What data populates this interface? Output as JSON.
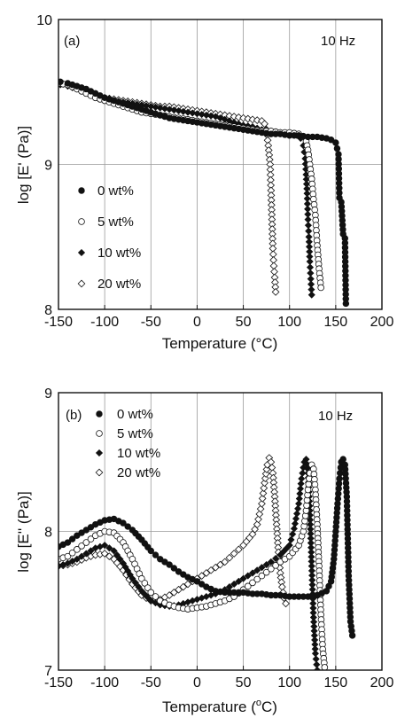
{
  "chart_data": [
    {
      "type": "scatter",
      "panel_label": "(a)",
      "annotation": "10 Hz",
      "xlabel": "Temperature (°C)",
      "ylabel": "log [E' (Pa)]",
      "xlim": [
        -150,
        200
      ],
      "ylim": [
        8,
        10
      ],
      "x_ticks": [
        "-150",
        "-100",
        "-50",
        "0",
        "50",
        "100",
        "150",
        "200"
      ],
      "y_ticks": [
        "8",
        "9",
        "10"
      ],
      "grid": true,
      "legend_position": "left",
      "series": [
        {
          "name": "0 wt%",
          "marker": "filled-circle",
          "x": [
            -148,
            -140,
            -130,
            -120,
            -110,
            -100,
            -90,
            -80,
            -70,
            -60,
            -50,
            -40,
            -30,
            -20,
            -10,
            0,
            10,
            20,
            30,
            40,
            50,
            60,
            70,
            80,
            90,
            100,
            110,
            120,
            130,
            140,
            145,
            150,
            153,
            154,
            156,
            158,
            160,
            161
          ],
          "y": [
            9.57,
            9.56,
            9.54,
            9.52,
            9.49,
            9.46,
            9.44,
            9.42,
            9.4,
            9.38,
            9.36,
            9.34,
            9.32,
            9.31,
            9.3,
            9.29,
            9.28,
            9.27,
            9.26,
            9.25,
            9.24,
            9.23,
            9.22,
            9.21,
            9.21,
            9.2,
            9.2,
            9.19,
            9.19,
            9.18,
            9.17,
            9.15,
            9.07,
            8.77,
            8.74,
            8.52,
            8.49,
            8.04
          ]
        },
        {
          "name": "5 wt%",
          "marker": "open-circle",
          "x": [
            -150,
            -140,
            -130,
            -120,
            -110,
            -100,
            -90,
            -80,
            -70,
            -60,
            -50,
            -40,
            -30,
            -20,
            -10,
            0,
            10,
            20,
            30,
            40,
            50,
            60,
            70,
            80,
            90,
            100,
            110,
            115,
            118,
            120,
            122,
            124,
            126,
            128,
            130,
            132,
            134
          ],
          "y": [
            9.56,
            9.55,
            9.52,
            9.49,
            9.46,
            9.44,
            9.42,
            9.4,
            9.38,
            9.36,
            9.35,
            9.34,
            9.33,
            9.32,
            9.31,
            9.3,
            9.29,
            9.28,
            9.27,
            9.26,
            9.25,
            9.24,
            9.23,
            9.23,
            9.22,
            9.22,
            9.21,
            9.19,
            9.16,
            9.1,
            9.0,
            8.9,
            8.76,
            8.65,
            8.44,
            8.28,
            8.15
          ]
        },
        {
          "name": "10 wt%",
          "marker": "filled-diamond",
          "x": [
            -148,
            -140,
            -130,
            -120,
            -110,
            -100,
            -90,
            -80,
            -70,
            -60,
            -50,
            -40,
            -30,
            -20,
            -10,
            0,
            10,
            20,
            30,
            40,
            50,
            60,
            70,
            80,
            90,
            100,
            108,
            112,
            115,
            117,
            118,
            119,
            120,
            121,
            122,
            123,
            124
          ],
          "y": [
            9.55,
            9.54,
            9.52,
            9.5,
            9.48,
            9.46,
            9.44,
            9.43,
            9.42,
            9.41,
            9.4,
            9.39,
            9.38,
            9.37,
            9.36,
            9.35,
            9.34,
            9.33,
            9.31,
            9.29,
            9.27,
            9.26,
            9.24,
            9.23,
            9.22,
            9.21,
            9.2,
            9.18,
            9.13,
            9.04,
            8.93,
            8.8,
            8.62,
            8.5,
            8.33,
            8.21,
            8.1
          ]
        },
        {
          "name": "20 wt%",
          "marker": "open-diamond",
          "x": [
            -150,
            -140,
            -130,
            -120,
            -110,
            -100,
            -90,
            -80,
            -70,
            -60,
            -50,
            -40,
            -30,
            -20,
            -10,
            0,
            10,
            20,
            30,
            40,
            50,
            60,
            70,
            73,
            75,
            77,
            79,
            80,
            81,
            82,
            83,
            84,
            85
          ],
          "y": [
            9.56,
            9.55,
            9.53,
            9.5,
            9.48,
            9.46,
            9.45,
            9.44,
            9.43,
            9.42,
            9.41,
            9.4,
            9.4,
            9.39,
            9.38,
            9.37,
            9.36,
            9.35,
            9.34,
            9.33,
            9.32,
            9.31,
            9.3,
            9.28,
            9.24,
            9.13,
            9.0,
            8.82,
            8.62,
            8.42,
            8.3,
            8.22,
            8.12
          ]
        }
      ]
    },
    {
      "type": "scatter",
      "panel_label": "(b)",
      "annotation": "10 Hz",
      "xlabel_parts": [
        "Temperature (",
        "o",
        "C)"
      ],
      "ylabel": "log [E'' (Pa)]",
      "xlim": [
        -150,
        200
      ],
      "ylim": [
        7,
        9
      ],
      "x_ticks": [
        "-150",
        "-100",
        "-50",
        "0",
        "50",
        "100",
        "150",
        "200"
      ],
      "y_ticks": [
        "7",
        "8",
        "9"
      ],
      "grid": true,
      "legend_position": "top-left",
      "series": [
        {
          "name": "0 wt%",
          "marker": "filled-circle",
          "x": [
            -150,
            -140,
            -130,
            -120,
            -110,
            -100,
            -90,
            -80,
            -70,
            -60,
            -50,
            -40,
            -30,
            -20,
            -10,
            0,
            10,
            20,
            30,
            40,
            50,
            60,
            70,
            80,
            90,
            100,
            110,
            120,
            130,
            140,
            145,
            148,
            150,
            152,
            154,
            156,
            158,
            160,
            162,
            164,
            166,
            168
          ],
          "y": [
            7.89,
            7.92,
            7.97,
            8.01,
            8.05,
            8.08,
            8.09,
            8.06,
            8.01,
            7.94,
            7.86,
            7.8,
            7.76,
            7.71,
            7.67,
            7.64,
            7.6,
            7.57,
            7.56,
            7.56,
            7.56,
            7.55,
            7.55,
            7.54,
            7.54,
            7.53,
            7.53,
            7.53,
            7.54,
            7.57,
            7.64,
            7.8,
            8.0,
            8.2,
            8.38,
            8.5,
            8.52,
            8.48,
            8.25,
            7.68,
            7.35,
            7.25
          ]
        },
        {
          "name": "5 wt%",
          "marker": "open-circle",
          "x": [
            -150,
            -140,
            -130,
            -120,
            -110,
            -100,
            -90,
            -80,
            -70,
            -60,
            -50,
            -40,
            -30,
            -20,
            -10,
            0,
            10,
            20,
            30,
            40,
            50,
            60,
            70,
            80,
            90,
            100,
            110,
            115,
            118,
            120,
            122,
            124,
            126,
            128,
            130,
            132,
            134,
            136,
            138,
            140
          ],
          "y": [
            7.8,
            7.82,
            7.87,
            7.92,
            7.97,
            8.0,
            7.99,
            7.92,
            7.8,
            7.66,
            7.56,
            7.5,
            7.47,
            7.45,
            7.44,
            7.45,
            7.46,
            7.48,
            7.5,
            7.53,
            7.58,
            7.63,
            7.68,
            7.73,
            7.78,
            7.82,
            7.9,
            8.0,
            8.15,
            8.3,
            8.42,
            8.48,
            8.45,
            8.3,
            8.05,
            7.75,
            7.4,
            7.15,
            7.02,
            6.98
          ]
        },
        {
          "name": "10 wt%",
          "marker": "filled-diamond",
          "x": [
            -150,
            -140,
            -130,
            -120,
            -110,
            -100,
            -90,
            -80,
            -70,
            -60,
            -50,
            -40,
            -30,
            -20,
            -10,
            0,
            10,
            20,
            30,
            40,
            50,
            60,
            70,
            80,
            90,
            100,
            105,
            110,
            113,
            116,
            118,
            120,
            122,
            124,
            126,
            128,
            130
          ],
          "y": [
            7.75,
            7.77,
            7.8,
            7.84,
            7.88,
            7.9,
            7.86,
            7.77,
            7.66,
            7.57,
            7.5,
            7.47,
            7.46,
            7.47,
            7.49,
            7.51,
            7.53,
            7.55,
            7.58,
            7.62,
            7.66,
            7.7,
            7.74,
            7.78,
            7.83,
            7.9,
            8.02,
            8.2,
            8.38,
            8.5,
            8.52,
            8.42,
            8.15,
            7.75,
            7.38,
            7.12,
            7.0
          ]
        },
        {
          "name": "20 wt%",
          "marker": "open-diamond",
          "x": [
            -150,
            -140,
            -130,
            -120,
            -110,
            -100,
            -90,
            -80,
            -70,
            -60,
            -50,
            -40,
            -30,
            -20,
            -10,
            0,
            10,
            20,
            30,
            40,
            50,
            60,
            65,
            70,
            73,
            76,
            78,
            80,
            82,
            84,
            86,
            88,
            90,
            92,
            94,
            96
          ],
          "y": [
            7.75,
            7.76,
            7.78,
            7.81,
            7.83,
            7.84,
            7.8,
            7.72,
            7.62,
            7.54,
            7.5,
            7.51,
            7.54,
            7.58,
            7.62,
            7.66,
            7.7,
            7.74,
            7.78,
            7.84,
            7.9,
            7.98,
            8.05,
            8.2,
            8.35,
            8.48,
            8.53,
            8.5,
            8.42,
            8.25,
            8.05,
            7.85,
            7.7,
            7.6,
            7.52,
            7.48
          ]
        }
      ]
    }
  ]
}
